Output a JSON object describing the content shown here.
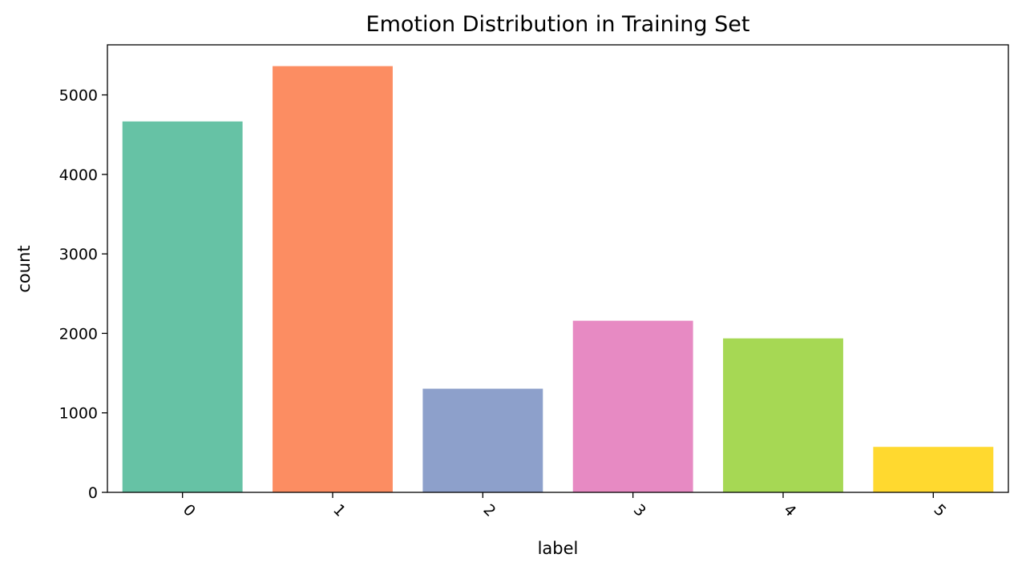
{
  "chart_data": {
    "type": "bar",
    "title": "Emotion Distribution in Training Set",
    "xlabel": "label",
    "ylabel": "count",
    "categories": [
      "0",
      "1",
      "2",
      "3",
      "4",
      "5"
    ],
    "values": [
      4666,
      5362,
      1304,
      2159,
      1937,
      572
    ],
    "colors": [
      "#66c2a5",
      "#fc8d62",
      "#8da0cb",
      "#e78ac3",
      "#a6d854",
      "#ffd92f"
    ],
    "ylim": [
      0,
      5630
    ],
    "yticks": [
      0,
      1000,
      2000,
      3000,
      4000,
      5000
    ],
    "grid": false,
    "legend": "none",
    "xtick_rotation": 45
  }
}
